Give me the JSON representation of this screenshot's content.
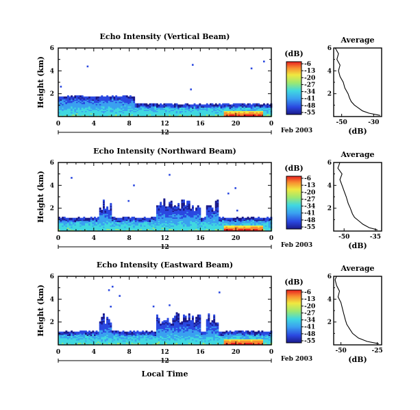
{
  "chart_data": [
    {
      "type": "heatmap",
      "title": "Echo Intensity (Vertical Beam)",
      "ylabel": "Height (km)",
      "xlabel": "",
      "xlim": [
        0,
        24
      ],
      "ylim": [
        0,
        6
      ],
      "x_ticks": [
        "0",
        "4",
        "8",
        "12",
        "16",
        "20",
        "0"
      ],
      "y_ticks": [
        "2",
        "4",
        "6"
      ],
      "date_day": "12",
      "date_label": "Feb 2003",
      "colorbar": {
        "unit": "(dB)",
        "ticks": [
          "-6",
          "-13",
          "-20",
          "-27",
          "-34",
          "-41",
          "-48",
          "-55"
        ]
      },
      "layers": [
        {
          "x": [
            0,
            8.5
          ],
          "top": 1.6,
          "intensity": 0.25
        },
        {
          "x": [
            0,
            24
          ],
          "top": 0.9,
          "intensity": 0.45
        },
        {
          "x": [
            18.5,
            23
          ],
          "top": 0.5,
          "intensity": 0.9
        }
      ],
      "average": {
        "title": "Average",
        "xlabel": "(dB)",
        "x_ticks": [
          "-50",
          "-30"
        ],
        "xlim": [
          -55,
          -25
        ],
        "ylim": [
          0,
          6
        ],
        "y_ticks": [
          "2",
          "4",
          "6"
        ],
        "profile": [
          [
            -26,
            0.1
          ],
          [
            -33,
            0.3
          ],
          [
            -37,
            0.5
          ],
          [
            -40,
            0.8
          ],
          [
            -42,
            1.0
          ],
          [
            -44,
            1.3
          ],
          [
            -45,
            1.6
          ],
          [
            -46,
            2.0
          ],
          [
            -48,
            2.5
          ],
          [
            -49,
            3.0
          ],
          [
            -51,
            3.5
          ],
          [
            -52,
            4.0
          ],
          [
            -51,
            4.5
          ],
          [
            -53,
            5.0
          ],
          [
            -52,
            5.5
          ],
          [
            -54,
            6.0
          ]
        ]
      }
    },
    {
      "type": "heatmap",
      "title": "Echo Intensity (Northward Beam)",
      "ylabel": "Height (km)",
      "xlabel": "",
      "xlim": [
        0,
        24
      ],
      "ylim": [
        0,
        6
      ],
      "x_ticks": [
        "0",
        "4",
        "8",
        "12",
        "16",
        "20",
        "0"
      ],
      "y_ticks": [
        "2",
        "4",
        "6"
      ],
      "date_day": "12",
      "date_label": "Feb 2003",
      "colorbar": {
        "unit": "(dB)",
        "ticks": [
          "-6",
          "-13",
          "-20",
          "-27",
          "-34",
          "-41",
          "-48",
          "-55"
        ]
      },
      "layers": [
        {
          "x": [
            0,
            24
          ],
          "top": 1.0,
          "intensity": 0.4
        },
        {
          "x": [
            18.5,
            23
          ],
          "top": 0.5,
          "intensity": 0.9
        }
      ],
      "average": {
        "title": "Average",
        "xlabel": "(dB)",
        "x_ticks": [
          "-50",
          "-35"
        ],
        "xlim": [
          -55,
          -32
        ],
        "ylim": [
          0,
          6
        ],
        "y_ticks": [
          "2",
          "4",
          "6"
        ],
        "profile": [
          [
            -34,
            0.1
          ],
          [
            -38,
            0.3
          ],
          [
            -41,
            0.6
          ],
          [
            -43,
            0.9
          ],
          [
            -45,
            1.2
          ],
          [
            -46,
            1.5
          ],
          [
            -47,
            2.0
          ],
          [
            -48,
            2.4
          ],
          [
            -49,
            3.0
          ],
          [
            -50,
            3.5
          ],
          [
            -51,
            4.0
          ],
          [
            -52,
            4.5
          ],
          [
            -51,
            5.0
          ],
          [
            -53,
            5.5
          ],
          [
            -52,
            6.0
          ]
        ]
      }
    },
    {
      "type": "heatmap",
      "title": "Echo Intensity (Eastward Beam)",
      "ylabel": "Height (km)",
      "xlabel": "Local Time",
      "xlim": [
        0,
        24
      ],
      "ylim": [
        0,
        6
      ],
      "x_ticks": [
        "0",
        "4",
        "8",
        "12",
        "16",
        "20",
        "0"
      ],
      "y_ticks": [
        "2",
        "4",
        "6"
      ],
      "date_day": "12",
      "date_label": "Feb 2003",
      "colorbar": {
        "unit": "(dB)",
        "ticks": [
          "-6",
          "-13",
          "-20",
          "-27",
          "-34",
          "-41",
          "-48",
          "-55"
        ]
      },
      "layers": [
        {
          "x": [
            0,
            24
          ],
          "top": 1.0,
          "intensity": 0.4
        },
        {
          "x": [
            18.5,
            23
          ],
          "top": 0.5,
          "intensity": 0.9
        }
      ],
      "average": {
        "title": "Average",
        "xlabel": "(dB)",
        "x_ticks": [
          "-50",
          "-25"
        ],
        "xlim": [
          -55,
          -22
        ],
        "ylim": [
          0,
          6
        ],
        "y_ticks": [
          "2",
          "4",
          "6"
        ],
        "profile": [
          [
            -24,
            0.1
          ],
          [
            -32,
            0.3
          ],
          [
            -38,
            0.6
          ],
          [
            -42,
            1.0
          ],
          [
            -44,
            1.4
          ],
          [
            -46,
            1.8
          ],
          [
            -47,
            2.2
          ],
          [
            -48,
            2.7
          ],
          [
            -49,
            3.2
          ],
          [
            -50,
            3.7
          ],
          [
            -52,
            4.2
          ],
          [
            -51,
            4.7
          ],
          [
            -53,
            5.2
          ],
          [
            -54,
            5.7
          ],
          [
            -53,
            6.0
          ]
        ]
      }
    }
  ]
}
